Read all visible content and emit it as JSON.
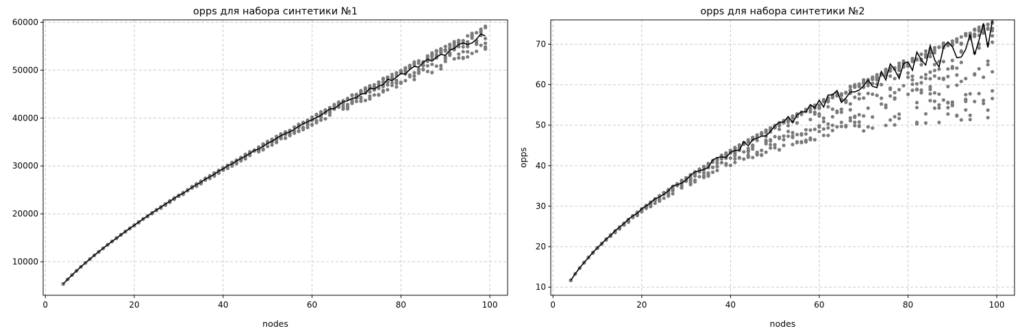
{
  "colors": {
    "points": "#7a7a7a",
    "line": "#000000",
    "grid": "#c8c8c8"
  },
  "chart_data": [
    {
      "type": "scatter",
      "title": "opps для набора синтетики №1",
      "xlabel": "nodes",
      "ylabel": "",
      "xlim": [
        -0.5,
        104
      ],
      "ylim": [
        3000,
        60500
      ],
      "xticks": [
        0,
        20,
        40,
        60,
        80,
        100
      ],
      "yticks": [
        10000,
        20000,
        30000,
        40000,
        50000,
        60000
      ],
      "grid": true,
      "x_range": [
        4,
        99
      ],
      "series": [
        {
          "kind": "points",
          "model": {
            "a": 1920,
            "p": 0.74,
            "spread_low": 0.065,
            "spread_high": 0.03,
            "per_x": 7
          }
        },
        {
          "kind": "mean-line",
          "model": {
            "a": 1920,
            "p": 0.74,
            "jitter": 0.012
          }
        }
      ]
    },
    {
      "type": "scatter",
      "title": "opps для набора синтетики №2",
      "xlabel": "nodes",
      "ylabel": "opps",
      "xlim": [
        -0.5,
        104
      ],
      "ylim": [
        8,
        76
      ],
      "xticks": [
        0,
        20,
        40,
        60,
        80,
        100
      ],
      "yticks": [
        10,
        20,
        30,
        40,
        50,
        60,
        70
      ],
      "grid": true,
      "x_range": [
        4,
        99
      ],
      "series": [
        {
          "kind": "points",
          "model": {
            "a": 5.3,
            "p": 0.57,
            "spread_low": 0.3,
            "spread_high": 0.04,
            "per_x": 9
          }
        },
        {
          "kind": "mean-line",
          "model": {
            "a": 5.3,
            "p": 0.57,
            "jitter": 0.06
          }
        }
      ]
    }
  ]
}
